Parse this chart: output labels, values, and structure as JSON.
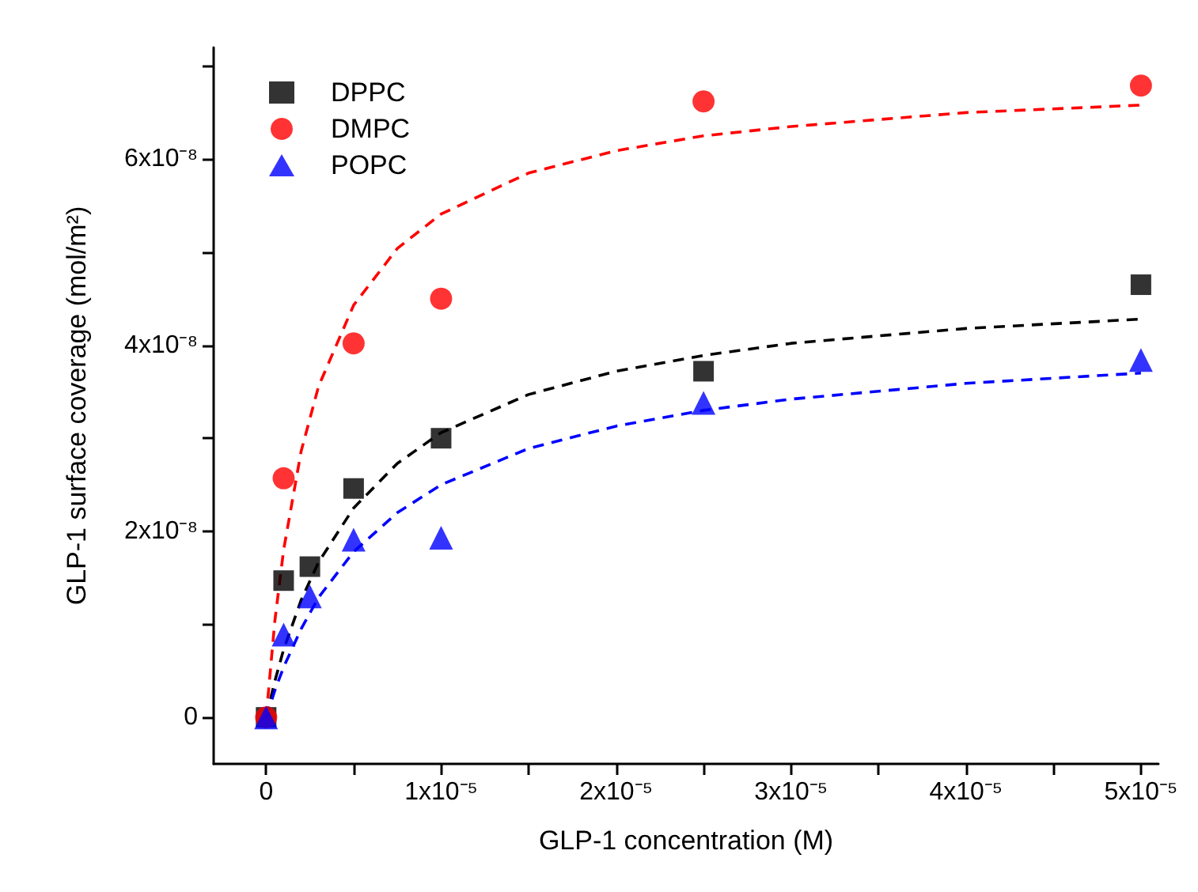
{
  "chart_data": {
    "type": "scatter",
    "xlabel": "GLP-1 concentration (M)",
    "ylabel": "GLP-1 surface coverage (mol/m²)",
    "xlim": [
      -3e-06,
      5.1e-05
    ],
    "ylim": [
      -5e-09,
      7.2e-08
    ],
    "xticks": [
      {
        "value": 0,
        "label": "0"
      },
      {
        "value": 5e-06,
        "label": null
      },
      {
        "value": 1e-05,
        "label": "1x10⁻⁵"
      },
      {
        "value": 1.5e-05,
        "label": null
      },
      {
        "value": 2e-05,
        "label": "2x10⁻⁵"
      },
      {
        "value": 2.5e-05,
        "label": null
      },
      {
        "value": 3e-05,
        "label": "3x10⁻⁵"
      },
      {
        "value": 3.5e-05,
        "label": null
      },
      {
        "value": 4e-05,
        "label": "4x10⁻⁵"
      },
      {
        "value": 4.5e-05,
        "label": null
      },
      {
        "value": 5e-05,
        "label": "5x10⁻⁵"
      }
    ],
    "yticks": [
      {
        "value": 0,
        "label": "0"
      },
      {
        "value": 1e-08,
        "label": null
      },
      {
        "value": 2e-08,
        "label": "2x10⁻⁸"
      },
      {
        "value": 3e-08,
        "label": null
      },
      {
        "value": 4e-08,
        "label": "4x10⁻⁸"
      },
      {
        "value": 5e-08,
        "label": null
      },
      {
        "value": 6e-08,
        "label": "6x10⁻⁸"
      },
      {
        "value": 7e-08,
        "label": null
      }
    ],
    "legend": "top left",
    "grid": false,
    "series": [
      {
        "name": "DPPC",
        "marker": "square",
        "color": "#000000",
        "x": [
          0,
          1e-06,
          2.5e-06,
          5e-06,
          1e-05,
          2.5e-05,
          5e-05
        ],
        "values": [
          0,
          1.47e-08,
          1.62e-08,
          2.46e-08,
          3e-08,
          3.72e-08,
          4.65e-08
        ]
      },
      {
        "name": "DMPC",
        "marker": "circle",
        "color": "#ff0000",
        "x": [
          0,
          1e-06,
          5e-06,
          1e-05,
          2.5e-05,
          5e-05
        ],
        "values": [
          0,
          2.57e-08,
          4.02e-08,
          4.5e-08,
          6.62e-08,
          6.79e-08
        ]
      },
      {
        "name": "POPC",
        "marker": "triangle",
        "color": "#0000ff",
        "x": [
          0,
          1e-06,
          2.5e-06,
          5e-06,
          1e-05,
          2.5e-05,
          5e-05
        ],
        "values": [
          0,
          8.9e-09,
          1.3e-08,
          1.91e-08,
          1.93e-08,
          3.38e-08,
          3.84e-08
        ]
      },
      {
        "type": "line",
        "marker": "none",
        "line_style": "dashed",
        "color": "#000000",
        "x": [
          0,
          5e-07,
          1e-06,
          2e-06,
          3e-06,
          5e-06,
          7.5e-06,
          1e-05,
          1.5e-05,
          2e-05,
          2.5e-05,
          3e-05,
          4e-05,
          5e-05
        ],
        "values": [
          0,
          3.9e-09,
          7.3e-09,
          1.26e-08,
          1.67e-08,
          2.25e-08,
          2.73e-08,
          3.06e-08,
          3.47e-08,
          3.72e-08,
          3.89e-08,
          4.02e-08,
          4.18e-08,
          4.28e-08
        ]
      },
      {
        "type": "line",
        "marker": "none",
        "line_style": "dashed",
        "color": "#ff0000",
        "x": [
          0,
          5e-07,
          1e-06,
          2e-06,
          3e-06,
          5e-06,
          7.5e-06,
          1e-05,
          1.5e-05,
          2e-05,
          2.5e-05,
          3e-05,
          4e-05,
          5e-05
        ],
        "values": [
          0,
          1.04e-08,
          1.8e-08,
          2.86e-08,
          3.56e-08,
          4.43e-08,
          5.04e-08,
          5.41e-08,
          5.85e-08,
          6.09e-08,
          6.25e-08,
          6.35e-08,
          6.5e-08,
          6.58e-08
        ]
      },
      {
        "type": "line",
        "marker": "none",
        "line_style": "dashed",
        "color": "#0000ff",
        "x": [
          0,
          5e-07,
          1e-06,
          2e-06,
          3e-06,
          5e-06,
          7.5e-06,
          1e-05,
          1.5e-05,
          2e-05,
          2.5e-05,
          3e-05,
          4e-05,
          5e-05
        ],
        "values": [
          0,
          2.9e-09,
          5.4e-09,
          9.5e-09,
          1.29e-08,
          1.78e-08,
          2.2e-08,
          2.5e-08,
          2.89e-08,
          3.13e-08,
          3.3e-08,
          3.42e-08,
          3.59e-08,
          3.7e-08
        ]
      }
    ]
  }
}
